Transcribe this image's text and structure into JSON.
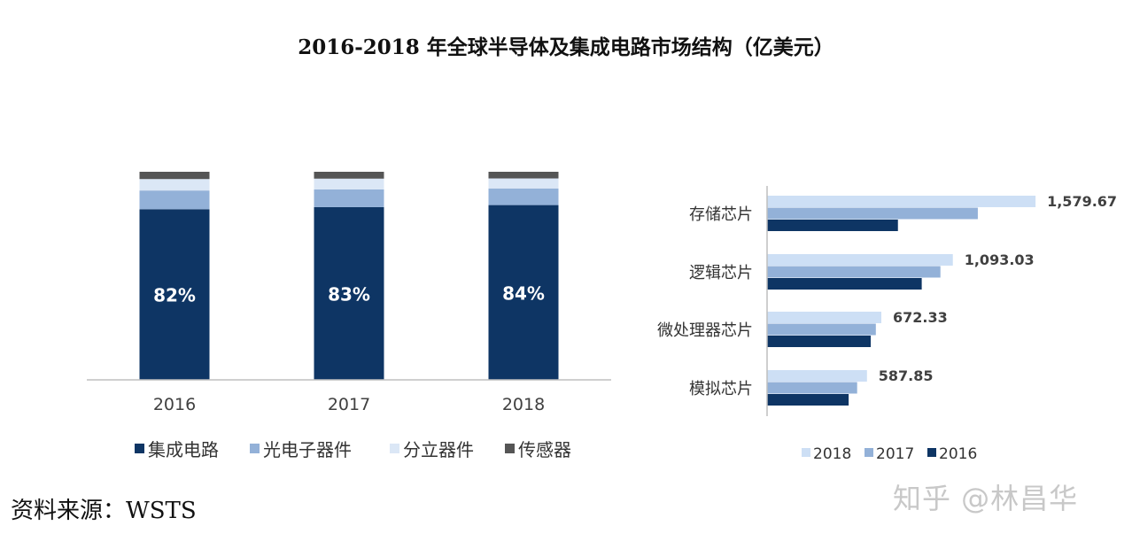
{
  "title": "2016-2018 年全球半导体及集成电路市场结构（亿美元）",
  "source": "资料来源：WSTS",
  "watermark": "知乎 @林昌华",
  "colors": {
    "ic": "#0e3564",
    "opto": "#93b1d8",
    "discrete": "#dbe7f6",
    "sensor": "#555555",
    "y2018": "#cddff5",
    "y2017": "#93b1d8",
    "y2016": "#0e3564"
  },
  "chart_data": [
    {
      "type": "bar",
      "stacked": true,
      "normalized": true,
      "categories": [
        "2016",
        "2017",
        "2018"
      ],
      "series": [
        {
          "name": "集成电路",
          "values": [
            82,
            83,
            84
          ],
          "labels": [
            "82%",
            "83%",
            "84%"
          ]
        },
        {
          "name": "光电子器件",
          "values": [
            9,
            8.5,
            8
          ]
        },
        {
          "name": "分立器件",
          "values": [
            5.5,
            5.2,
            4.8
          ]
        },
        {
          "name": "传感器",
          "values": [
            3.5,
            3.3,
            3.2
          ]
        }
      ],
      "ylim": [
        0,
        100
      ],
      "legend": "bottom"
    },
    {
      "type": "bar",
      "orientation": "horizontal",
      "categories": [
        "存储芯片",
        "逻辑芯片",
        "微处理器芯片",
        "模拟芯片"
      ],
      "series": [
        {
          "name": "2018",
          "values": [
            1579.67,
            1093.03,
            672.33,
            587.85
          ]
        },
        {
          "name": "2017",
          "values": [
            1240,
            1020,
            640,
            530
          ]
        },
        {
          "name": "2016",
          "values": [
            770,
            910,
            610,
            480
          ]
        }
      ],
      "value_labels": [
        "1,579.67",
        "1,093.03",
        "672.33",
        "587.85"
      ],
      "xlim": [
        0,
        1600
      ],
      "legend": "bottom"
    }
  ]
}
